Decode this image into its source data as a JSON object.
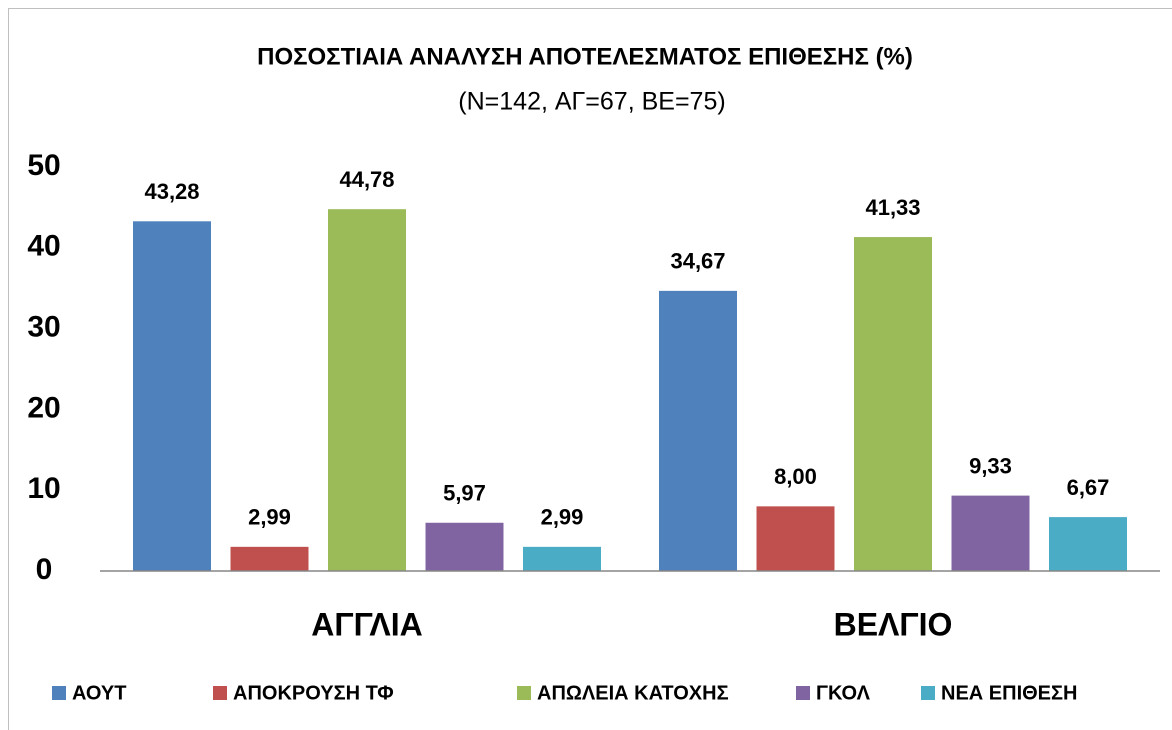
{
  "chart_data": {
    "type": "bar",
    "title": "ΠΟΣΟΣΤΙΑΙΑ ΑΝΑΛΥΣΗ ΑΠΟΤΕΛΕΣΜΑΤΟΣ ΕΠΙΘΕΣΗΣ (%)",
    "subtitle": "(N=142, ΑΓ=67, ΒΕ=75)",
    "categories": [
      "ΑΓΓΛΙΑ",
      "ΒΕΛΓΙΟ"
    ],
    "series": [
      {
        "name": "ΑΟΥΤ",
        "color": "#4f81bd",
        "values": [
          43.28,
          34.67
        ],
        "value_labels": [
          "43,28",
          "34,67"
        ]
      },
      {
        "name": "ΑΠΟΚΡΟΥΣΗ ΤΦ",
        "color": "#c0504d",
        "values": [
          2.99,
          8.0
        ],
        "value_labels": [
          "2,99",
          "8,00"
        ]
      },
      {
        "name": "ΑΠΩΛΕΙΑ ΚΑΤΟΧΗΣ",
        "color": "#9bbb59",
        "values": [
          44.78,
          41.33
        ],
        "value_labels": [
          "44,78",
          "41,33"
        ]
      },
      {
        "name": "ΓΚΟΛ",
        "color": "#8064a2",
        "values": [
          5.97,
          9.33
        ],
        "value_labels": [
          "5,97",
          "9,33"
        ]
      },
      {
        "name": "ΝΕΑ ΕΠΙΘΕΣΗ",
        "color": "#4bacc6",
        "values": [
          2.99,
          6.67
        ],
        "value_labels": [
          "2,99",
          "6,67"
        ]
      }
    ],
    "ylim": [
      0,
      50
    ],
    "yticks": [
      0,
      10,
      20,
      30,
      40,
      50
    ],
    "grid": false,
    "legend": "bottom"
  }
}
